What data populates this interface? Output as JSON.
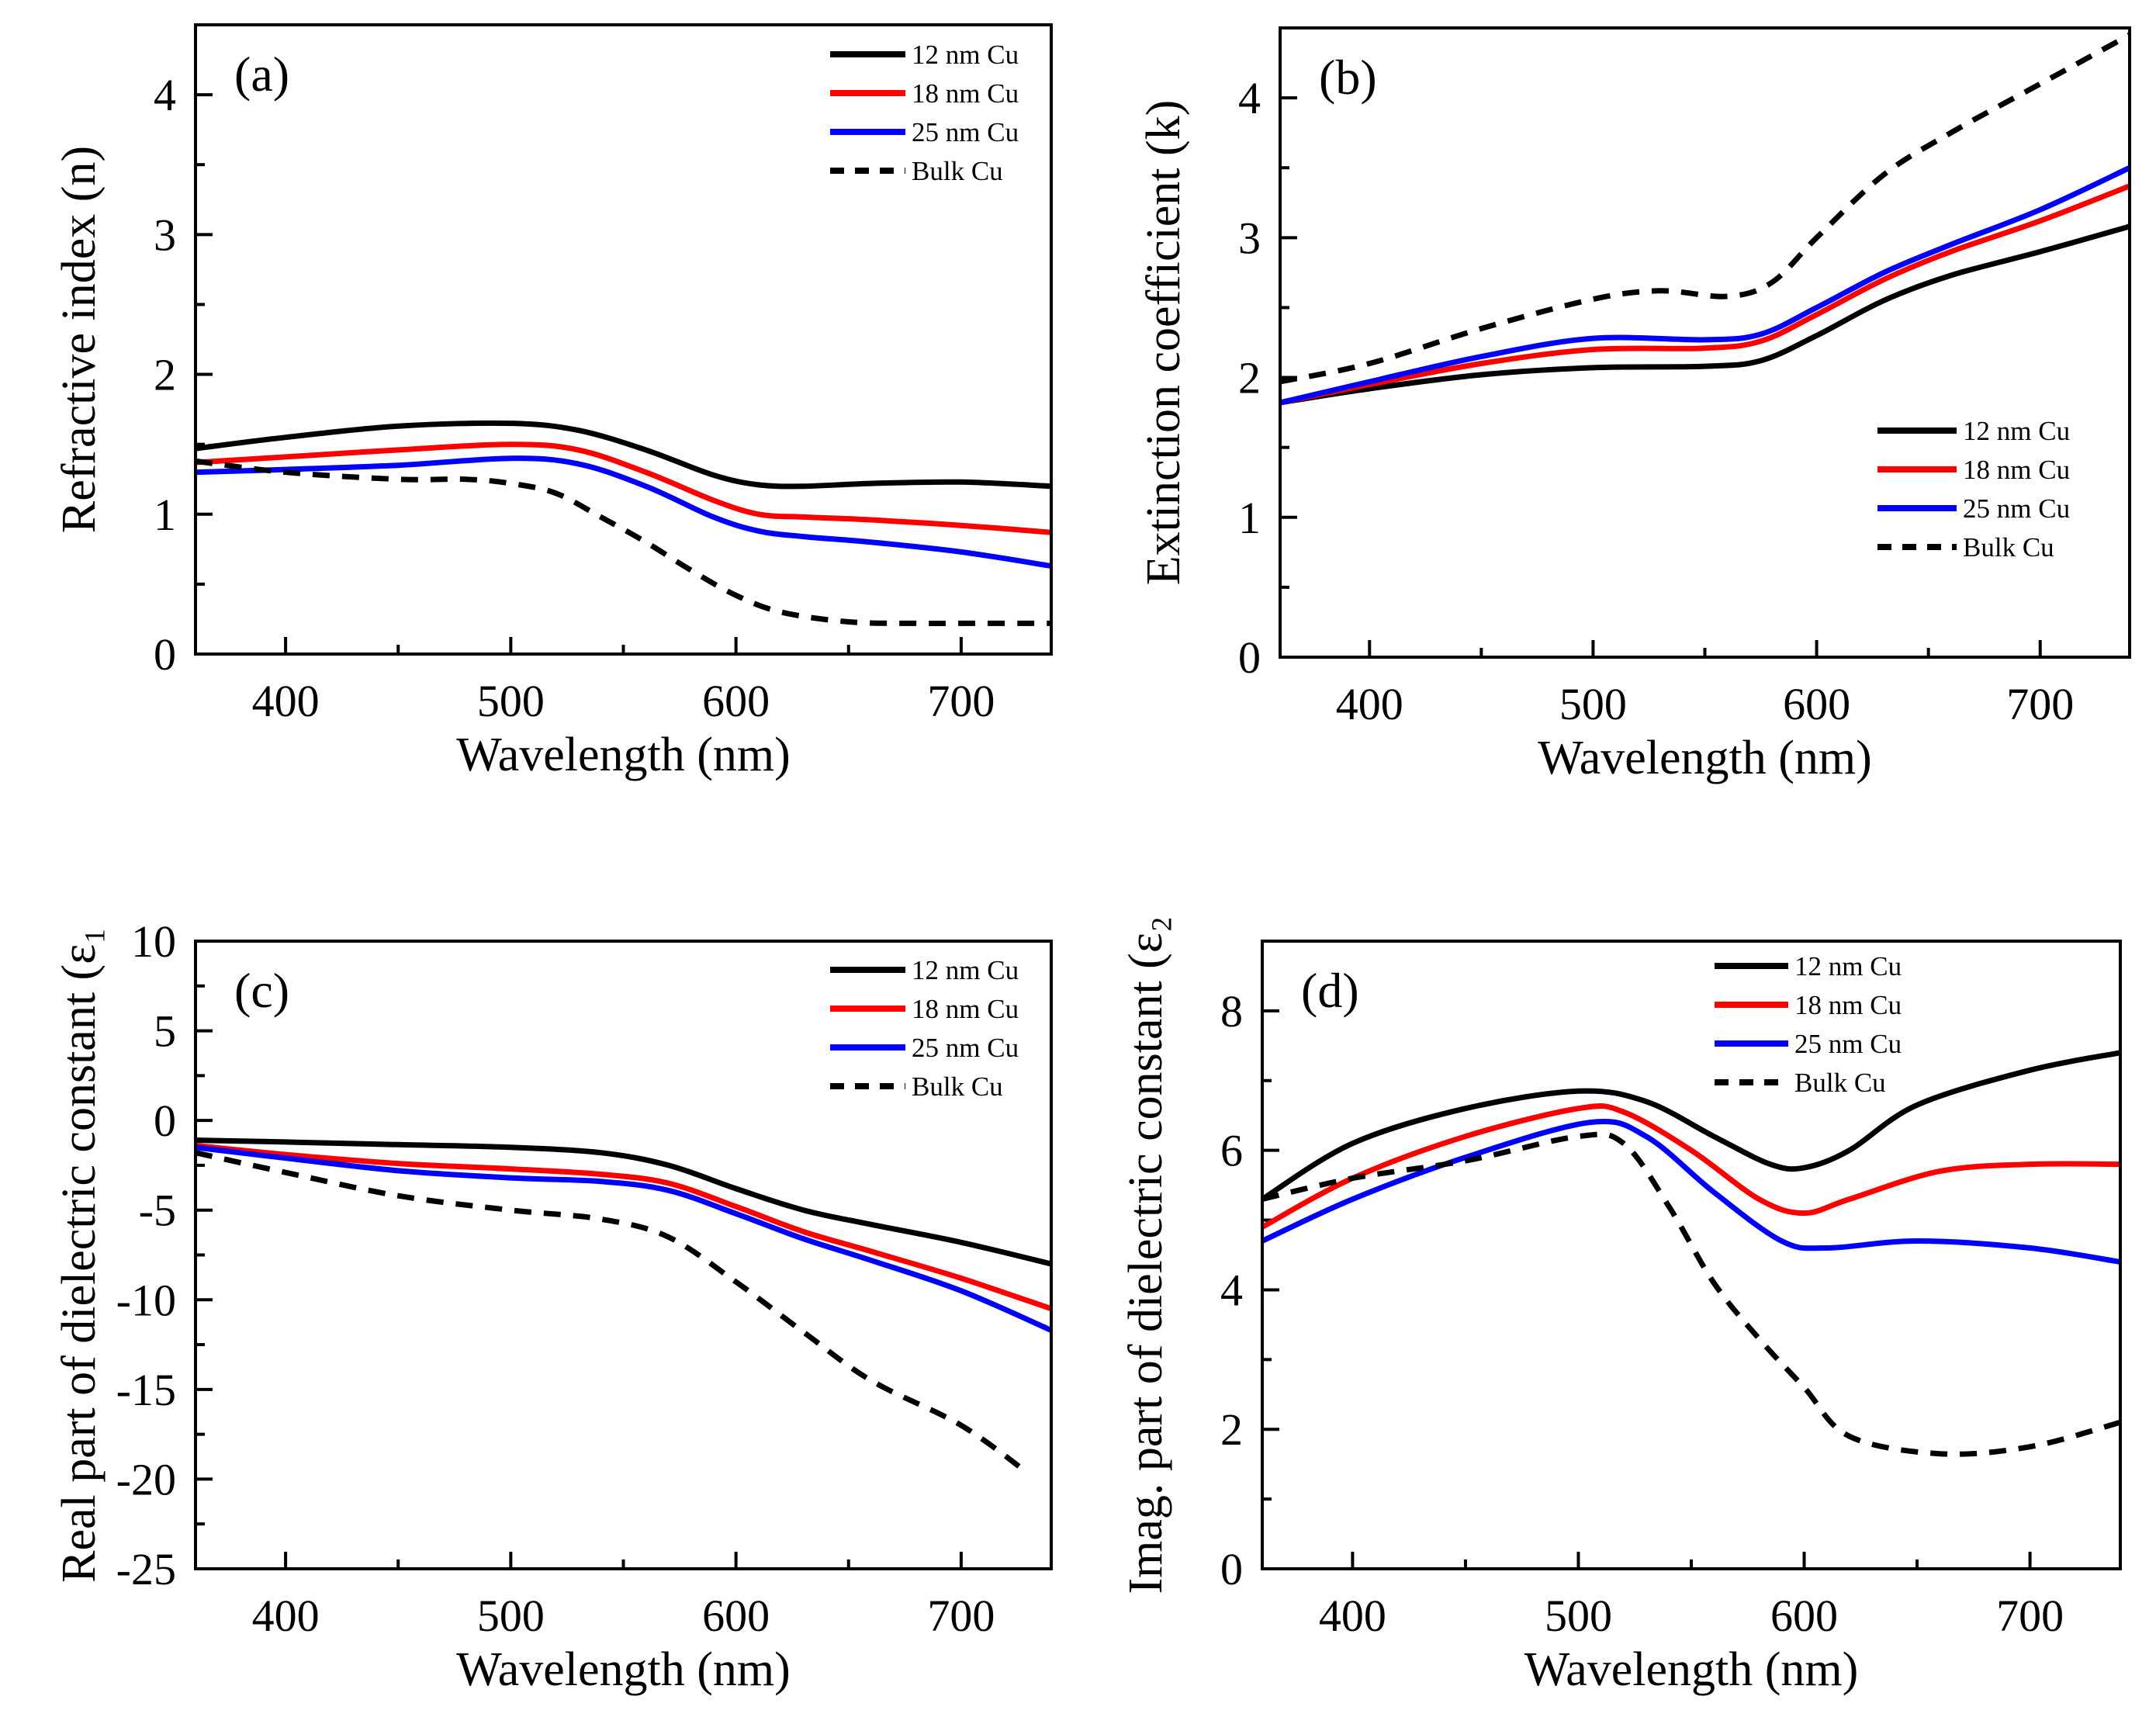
{
  "chart_data": [
    {
      "type": "line",
      "panel_label": "(a)",
      "xlabel": "Wavelength (nm)",
      "ylabel": "Refractive index (n)",
      "xlim": [
        360,
        740
      ],
      "ylim": [
        0,
        4.5
      ],
      "xticks": [
        400,
        500,
        600,
        700
      ],
      "yticks": [
        0,
        1,
        2,
        3,
        4
      ],
      "legend_position": "top-right",
      "series": [
        {
          "name": "12 nm Cu",
          "color": "#000000",
          "dashed": false,
          "x": [
            360,
            400,
            450,
            500,
            530,
            560,
            590,
            610,
            630,
            660,
            700,
            740
          ],
          "y": [
            1.47,
            1.55,
            1.63,
            1.65,
            1.6,
            1.46,
            1.28,
            1.21,
            1.2,
            1.22,
            1.23,
            1.2
          ]
        },
        {
          "name": "18 nm Cu",
          "color": "#ff0000",
          "dashed": false,
          "x": [
            360,
            400,
            450,
            500,
            530,
            560,
            590,
            610,
            630,
            660,
            700,
            740
          ],
          "y": [
            1.37,
            1.41,
            1.46,
            1.5,
            1.46,
            1.3,
            1.1,
            1.0,
            0.98,
            0.96,
            0.92,
            0.87
          ]
        },
        {
          "name": "25 nm Cu",
          "color": "#0000ff",
          "dashed": false,
          "x": [
            360,
            400,
            450,
            500,
            530,
            560,
            590,
            610,
            630,
            660,
            700,
            740
          ],
          "y": [
            1.3,
            1.32,
            1.35,
            1.4,
            1.36,
            1.2,
            0.98,
            0.88,
            0.84,
            0.8,
            0.73,
            0.63
          ]
        },
        {
          "name": "Bulk Cu",
          "color": "#000000",
          "dashed": true,
          "x": [
            360,
            400,
            450,
            480,
            500,
            520,
            540,
            560,
            580,
            600,
            620,
            650,
            680,
            700,
            740
          ],
          "y": [
            1.38,
            1.3,
            1.25,
            1.25,
            1.22,
            1.15,
            0.98,
            0.8,
            0.6,
            0.42,
            0.3,
            0.23,
            0.22,
            0.22,
            0.22
          ]
        }
      ]
    },
    {
      "type": "line",
      "panel_label": "(b)",
      "xlabel": "Wavelength (nm)",
      "ylabel": "Extinction coefficient (k)",
      "xlim": [
        360,
        740
      ],
      "ylim": [
        0,
        4.5
      ],
      "xticks": [
        400,
        500,
        600,
        700
      ],
      "yticks": [
        0,
        1,
        2,
        3,
        4
      ],
      "legend_position": "center-right",
      "series": [
        {
          "name": "12 nm Cu",
          "color": "#000000",
          "dashed": false,
          "x": [
            360,
            400,
            450,
            500,
            550,
            575,
            600,
            630,
            660,
            700,
            740
          ],
          "y": [
            1.82,
            1.92,
            2.02,
            2.07,
            2.08,
            2.12,
            2.3,
            2.55,
            2.73,
            2.9,
            3.08
          ]
        },
        {
          "name": "18 nm Cu",
          "color": "#ff0000",
          "dashed": false,
          "x": [
            360,
            400,
            450,
            500,
            550,
            575,
            600,
            630,
            660,
            700,
            740
          ],
          "y": [
            1.82,
            1.95,
            2.1,
            2.2,
            2.21,
            2.26,
            2.45,
            2.7,
            2.9,
            3.12,
            3.37
          ]
        },
        {
          "name": "25 nm Cu",
          "color": "#0000ff",
          "dashed": false,
          "x": [
            360,
            400,
            450,
            500,
            550,
            575,
            600,
            630,
            660,
            700,
            740
          ],
          "y": [
            1.82,
            1.97,
            2.15,
            2.28,
            2.27,
            2.31,
            2.5,
            2.75,
            2.95,
            3.2,
            3.5
          ]
        },
        {
          "name": "Bulk Cu",
          "color": "#000000",
          "dashed": true,
          "x": [
            360,
            400,
            450,
            500,
            530,
            560,
            580,
            600,
            630,
            660,
            700,
            740
          ],
          "y": [
            1.97,
            2.1,
            2.35,
            2.56,
            2.62,
            2.58,
            2.68,
            3.0,
            3.45,
            3.75,
            4.1,
            4.45
          ]
        }
      ]
    },
    {
      "type": "line",
      "panel_label": "(c)",
      "xlabel": "Wavelength (nm)",
      "ylabel": "Real part of dielectric constant (ε₁",
      "xlim": [
        360,
        740
      ],
      "ylim": [
        -25,
        10
      ],
      "xticks": [
        400,
        500,
        600,
        700
      ],
      "yticks": [
        10,
        5,
        0,
        -5,
        -10,
        -15,
        -20,
        -25
      ],
      "legend_position": "top-right",
      "series": [
        {
          "name": "12 nm Cu",
          "color": "#000000",
          "dashed": false,
          "x": [
            360,
            400,
            450,
            500,
            540,
            570,
            600,
            630,
            660,
            700,
            740
          ],
          "y": [
            -1.1,
            -1.2,
            -1.35,
            -1.5,
            -1.8,
            -2.5,
            -3.8,
            -5.0,
            -5.8,
            -6.8,
            -8.0
          ]
        },
        {
          "name": "18 nm Cu",
          "color": "#ff0000",
          "dashed": false,
          "x": [
            360,
            400,
            450,
            500,
            540,
            570,
            600,
            630,
            660,
            700,
            740
          ],
          "y": [
            -1.4,
            -1.9,
            -2.4,
            -2.7,
            -3.0,
            -3.5,
            -4.8,
            -6.2,
            -7.3,
            -8.8,
            -10.5
          ]
        },
        {
          "name": "25 nm Cu",
          "color": "#0000ff",
          "dashed": false,
          "x": [
            360,
            400,
            450,
            500,
            540,
            570,
            600,
            630,
            660,
            700,
            740
          ],
          "y": [
            -1.5,
            -2.1,
            -2.8,
            -3.2,
            -3.4,
            -3.9,
            -5.2,
            -6.6,
            -7.8,
            -9.5,
            -11.7
          ]
        },
        {
          "name": "Bulk Cu",
          "color": "#000000",
          "dashed": true,
          "x": [
            360,
            400,
            450,
            500,
            540,
            570,
            600,
            630,
            660,
            700,
            730
          ],
          "y": [
            -1.8,
            -2.9,
            -4.2,
            -5.0,
            -5.5,
            -6.5,
            -9.0,
            -11.8,
            -14.5,
            -17.0,
            -19.7
          ]
        }
      ]
    },
    {
      "type": "line",
      "panel_label": "(d)",
      "xlabel": "Wavelength (nm)",
      "ylabel": "Imag. part of dielectric constant (ε₂",
      "xlim": [
        360,
        740
      ],
      "ylim": [
        0,
        9
      ],
      "xticks": [
        400,
        500,
        600,
        700
      ],
      "yticks": [
        0,
        2,
        4,
        6,
        8
      ],
      "legend_position": "top-right",
      "series": [
        {
          "name": "12 nm Cu",
          "color": "#000000",
          "dashed": false,
          "x": [
            360,
            400,
            450,
            500,
            530,
            560,
            585,
            600,
            620,
            650,
            700,
            740
          ],
          "y": [
            5.3,
            6.1,
            6.6,
            6.85,
            6.7,
            6.2,
            5.8,
            5.75,
            6.0,
            6.65,
            7.15,
            7.4
          ]
        },
        {
          "name": "18 nm Cu",
          "color": "#ff0000",
          "dashed": false,
          "x": [
            360,
            400,
            450,
            500,
            520,
            550,
            580,
            600,
            620,
            660,
            700,
            740
          ],
          "y": [
            4.9,
            5.6,
            6.2,
            6.6,
            6.55,
            6.0,
            5.3,
            5.1,
            5.3,
            5.7,
            5.8,
            5.8
          ]
        },
        {
          "name": "25 nm Cu",
          "color": "#0000ff",
          "dashed": false,
          "x": [
            360,
            400,
            450,
            505,
            530,
            560,
            590,
            610,
            650,
            700,
            740
          ],
          "y": [
            4.7,
            5.3,
            5.9,
            6.4,
            6.2,
            5.4,
            4.7,
            4.6,
            4.7,
            4.6,
            4.4
          ]
        },
        {
          "name": "Bulk Cu",
          "color": "#000000",
          "dashed": true,
          "x": [
            360,
            400,
            450,
            500,
            520,
            540,
            560,
            580,
            600,
            620,
            660,
            700,
            740
          ],
          "y": [
            5.3,
            5.6,
            5.85,
            6.2,
            6.1,
            5.2,
            4.1,
            3.3,
            2.6,
            1.9,
            1.65,
            1.75,
            2.1
          ]
        }
      ]
    }
  ]
}
